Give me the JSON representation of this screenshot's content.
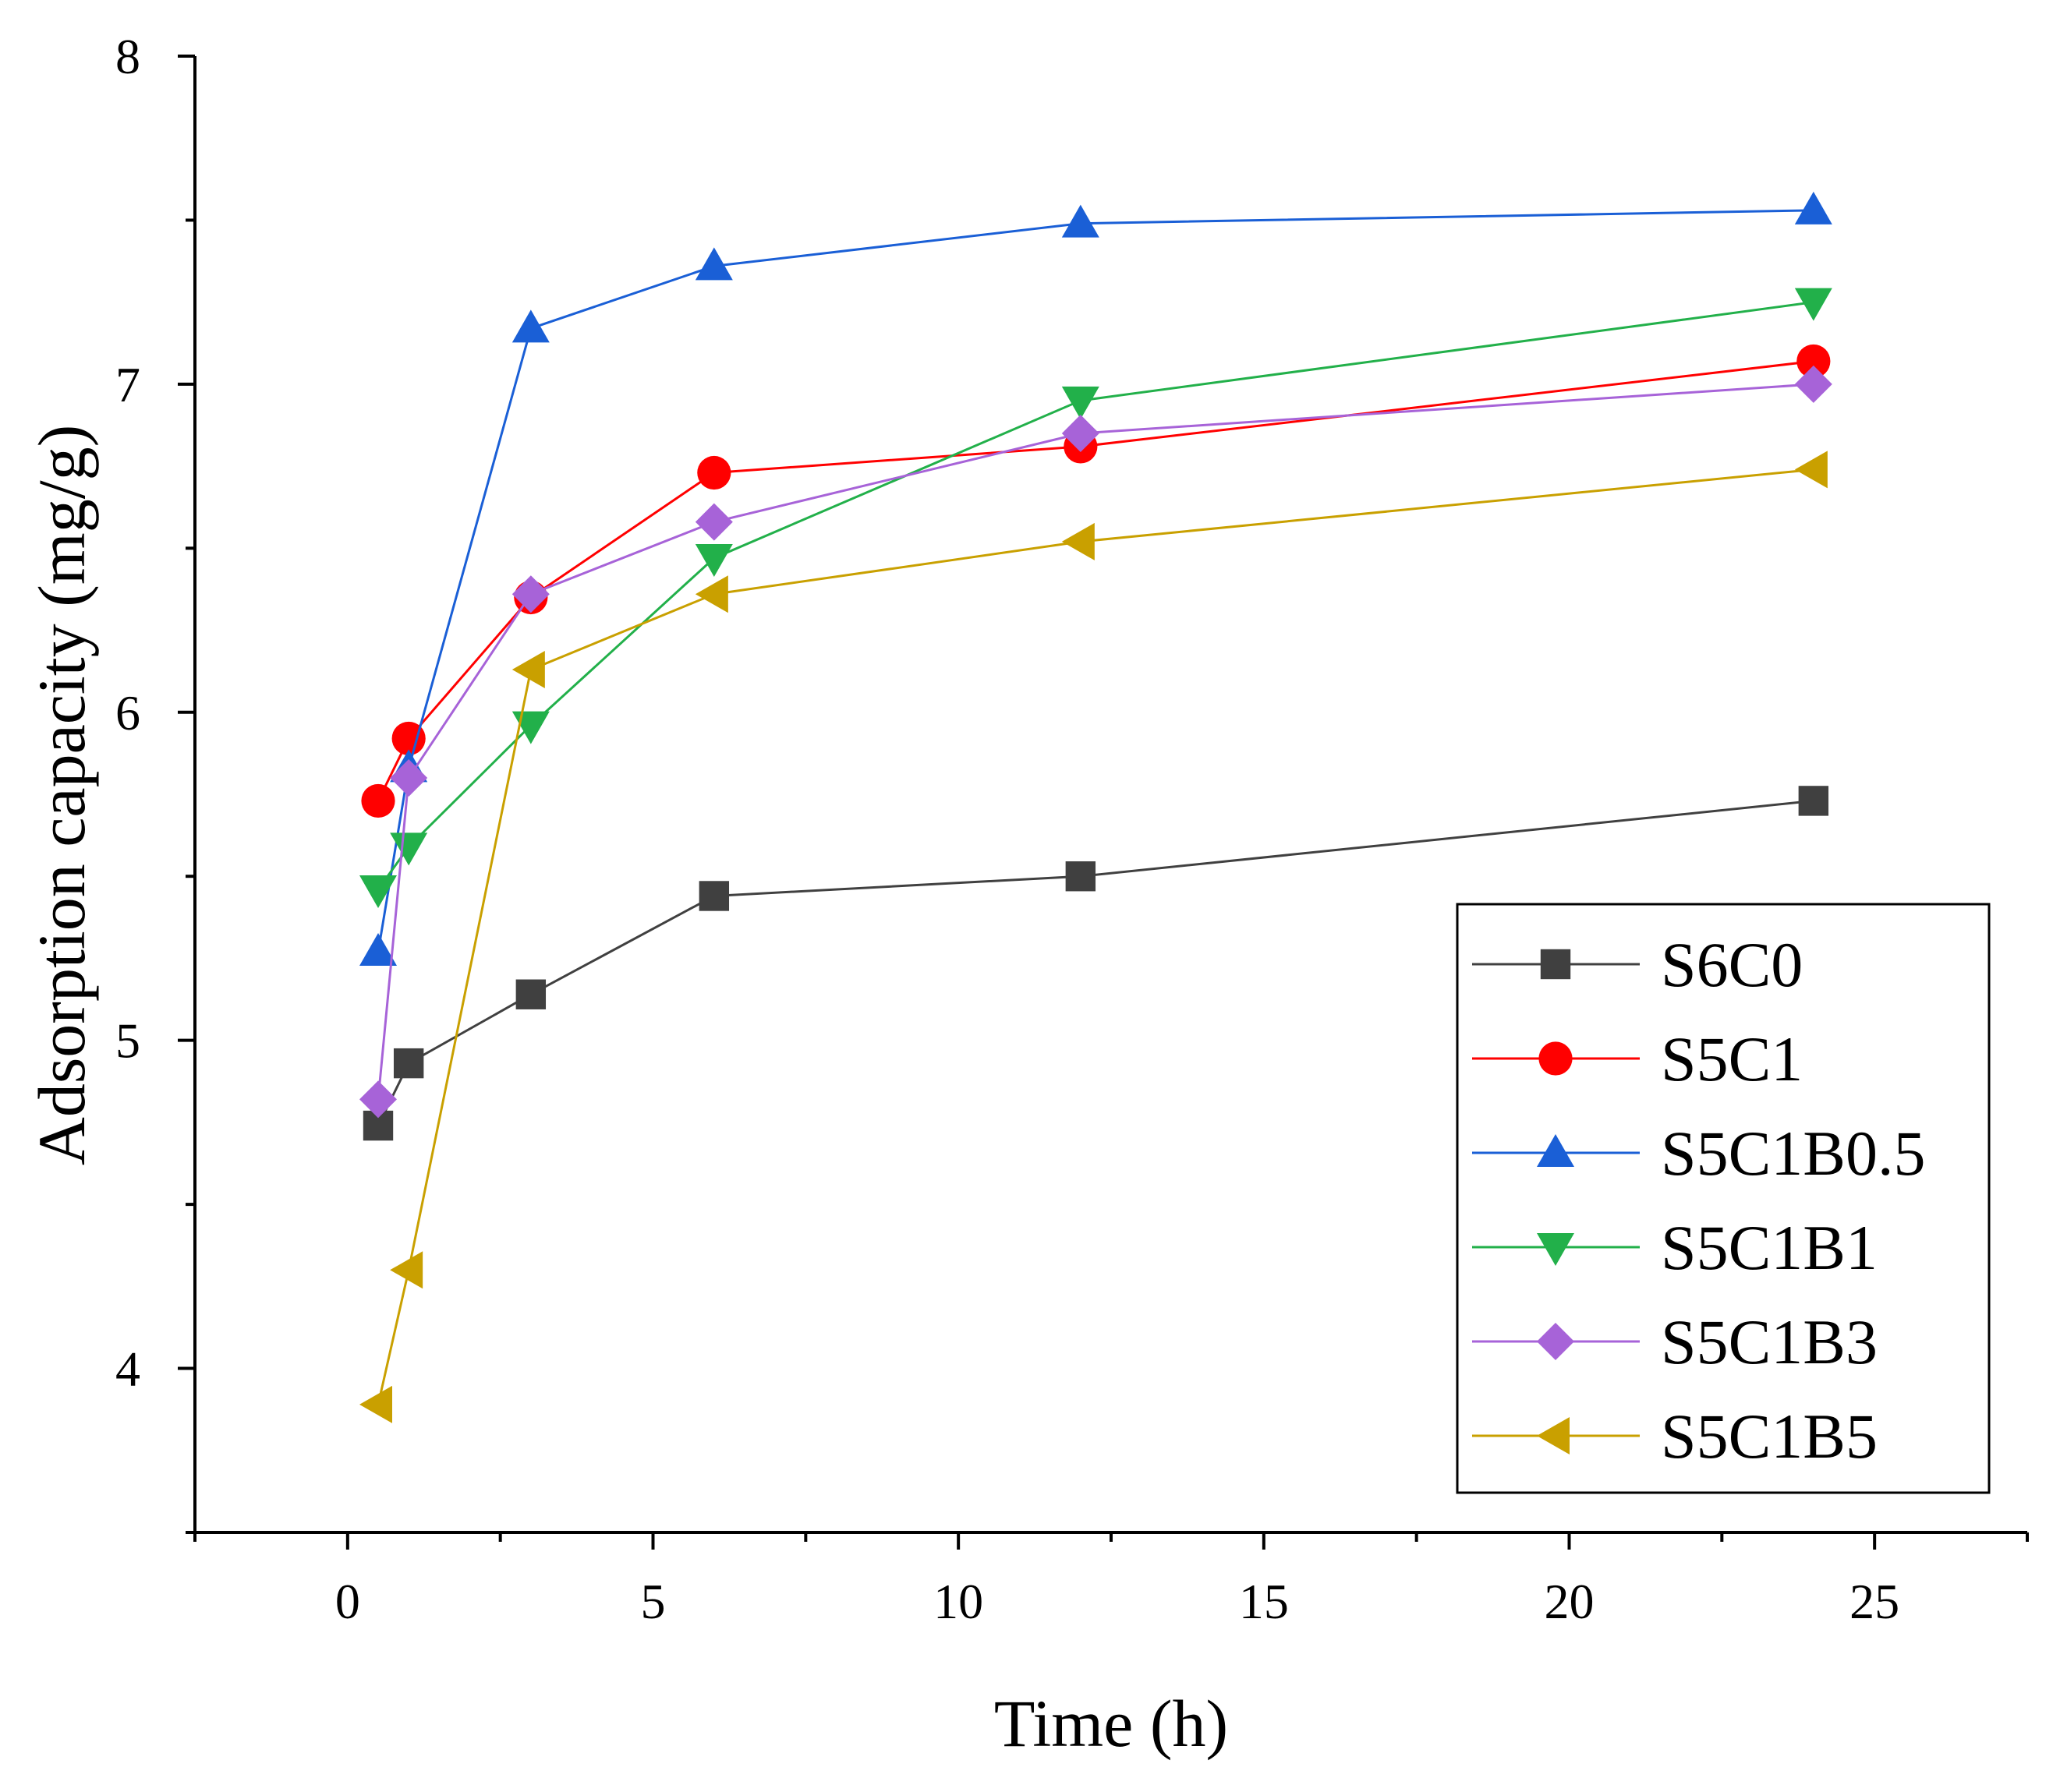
{
  "chart_data": {
    "type": "line",
    "title": "",
    "xlabel": "Time (h)",
    "ylabel": "Adsorption capacity (mg/g)",
    "xlim": [
      -2.5,
      27.5
    ],
    "ylim": [
      3.5,
      8
    ],
    "xticks": [
      0,
      5,
      10,
      15,
      20,
      25
    ],
    "yticks": [
      4,
      5,
      6,
      7,
      8
    ],
    "grid": false,
    "legend_position": "bottom-right",
    "x": [
      0.5,
      1,
      3,
      6,
      12,
      24
    ],
    "series": [
      {
        "name": "S6C0",
        "color": "#404040",
        "marker": "square",
        "values": [
          4.74,
          4.93,
          5.14,
          5.44,
          5.5,
          5.73
        ]
      },
      {
        "name": "S5C1",
        "color": "#ff0000",
        "marker": "circle",
        "values": [
          5.73,
          5.92,
          6.35,
          6.73,
          6.81,
          7.07
        ]
      },
      {
        "name": "S5C1B0.5",
        "color": "#1a5fd6",
        "marker": "triangle-up",
        "values": [
          5.27,
          5.83,
          7.17,
          7.36,
          7.49,
          7.53
        ]
      },
      {
        "name": "S5C1B1",
        "color": "#22b04a",
        "marker": "triangle-down",
        "values": [
          5.46,
          5.59,
          5.96,
          6.47,
          6.95,
          7.25
        ]
      },
      {
        "name": "S5C1B3",
        "color": "#a763d8",
        "marker": "diamond",
        "values": [
          4.82,
          5.8,
          6.36,
          6.58,
          6.85,
          7.0
        ]
      },
      {
        "name": "S5C1B5",
        "color": "#c9a000",
        "marker": "triangle-left",
        "values": [
          3.89,
          4.3,
          6.13,
          6.36,
          6.52,
          6.74
        ]
      }
    ]
  }
}
